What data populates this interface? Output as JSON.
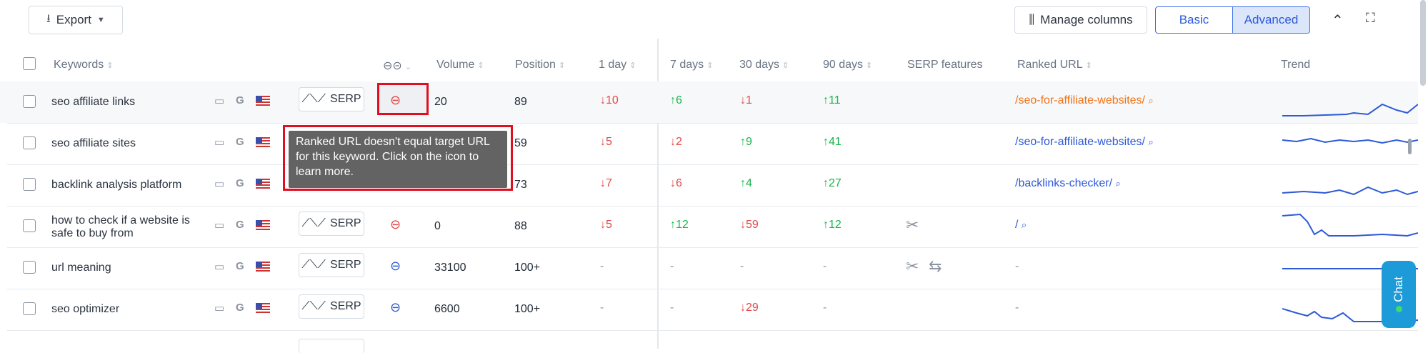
{
  "toolbar": {
    "export_label": "Export",
    "manage_columns_label": "Manage columns",
    "view_modes": [
      "Basic",
      "Advanced"
    ],
    "active_view": "Advanced"
  },
  "columns": {
    "keywords": "Keywords",
    "volume": "Volume",
    "position": "Position",
    "d1": "1 day",
    "d7": "7 days",
    "d30": "30 days",
    "d90": "90 days",
    "serp_features": "SERP features",
    "ranked_url": "Ranked URL",
    "trend": "Trend"
  },
  "serp_label": "SERP",
  "tooltip": "Ranked URL doesn't equal target URL for this keyword. Click on the icon to learn more.",
  "chat_label": "Chat",
  "rows": [
    {
      "keyword": "seo affiliate links",
      "volume": "20",
      "position": "89",
      "d1": "↓10",
      "d7": "↑6",
      "d30": "↓1",
      "d90": "↑11",
      "url": "/seo-for-affiliate-websites/"
    },
    {
      "keyword": "seo affiliate sites",
      "volume": "",
      "position": "59",
      "d1": "↓5",
      "d7": "↓2",
      "d30": "↑9",
      "d90": "↑41",
      "url": "/seo-for-affiliate-websites/"
    },
    {
      "keyword": "backlink analysis platform",
      "volume": "",
      "position": "73",
      "d1": "↓7",
      "d7": "↓6",
      "d30": "↑4",
      "d90": "↑27",
      "url": "/backlinks-checker/"
    },
    {
      "keyword_line1": "how to check if a website is",
      "keyword_line2": "safe to buy from",
      "volume": "0",
      "position": "88",
      "d1": "↓5",
      "d7": "↑12",
      "d30": "↓59",
      "d90": "↑12",
      "url": "/"
    },
    {
      "keyword": "url meaning",
      "volume": "33100",
      "position": "100+",
      "d1": "-",
      "d7": "-",
      "d30": "-",
      "d90": "-",
      "url": "-"
    },
    {
      "keyword": "seo optimizer",
      "volume": "6600",
      "position": "100+",
      "d1": "-",
      "d7": "-",
      "d30": "↓29",
      "d90": "-",
      "url": "-"
    }
  ],
  "colors": {
    "accent": "#2d5ad6",
    "up": "#19b44a",
    "down": "#e24747",
    "orange_url": "#f27316",
    "highlight": "#e00e1f"
  },
  "icons": [
    "download-icon",
    "caret-down-icon",
    "columns-icon",
    "collapse-icon",
    "fullscreen-icon",
    "desktop-icon",
    "google-icon",
    "us-flag-icon",
    "trend-icon",
    "link-icon",
    "search-icon",
    "scissors-icon",
    "swap-icon"
  ]
}
